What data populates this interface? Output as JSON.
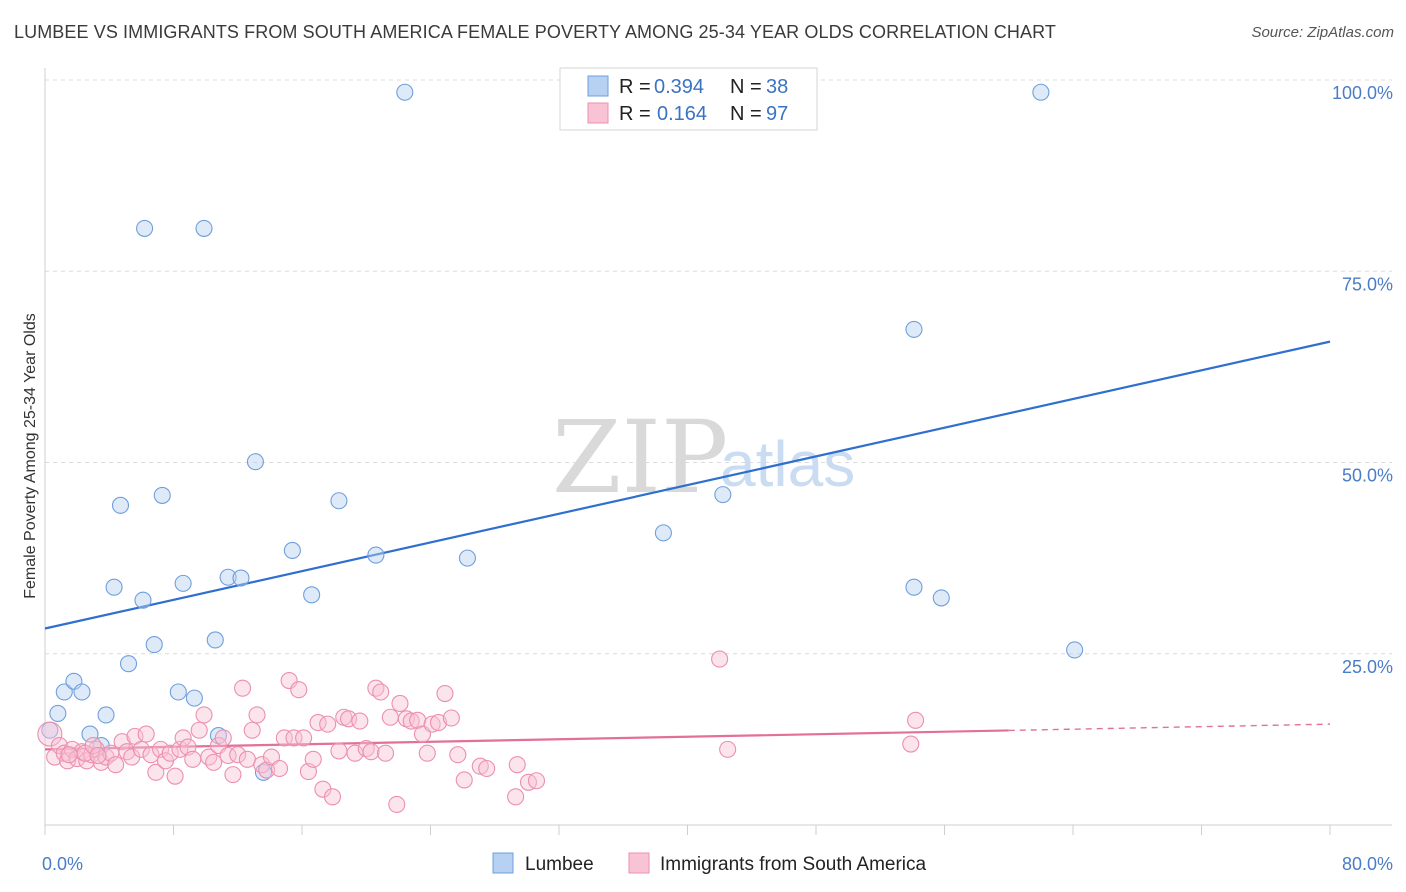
{
  "title": "LUMBEE VS IMMIGRANTS FROM SOUTH AMERICA FEMALE POVERTY AMONG 25-34 YEAR OLDS CORRELATION CHART",
  "source": "Source: ZipAtlas.com",
  "watermark": {
    "zip": "ZIP",
    "atlas": "atlas"
  },
  "legend": {
    "rows": [
      {
        "r_label": "R =",
        "r_value": "0.394",
        "n_label": "N =",
        "n_value": "38",
        "color": "#a9c8f0"
      },
      {
        "r_label": "R =",
        "r_value": "0.164",
        "n_label": "N =",
        "n_value": "97",
        "color": "#f6b8cc"
      }
    ]
  },
  "bottom_legend": [
    "Lumbee",
    "Immigrants from South America"
  ],
  "chart_data": {
    "type": "scatter",
    "title": "LUMBEE VS IMMIGRANTS FROM SOUTH AMERICA FEMALE POVERTY AMONG 25-34 YEAR OLDS CORRELATION CHART",
    "xlabel": "",
    "ylabel": "Female Poverty Among 25-34 Year Olds",
    "xlim": [
      0,
      80
    ],
    "ylim": [
      0,
      100
    ],
    "x_tick_labels": [
      "0.0%",
      "80.0%"
    ],
    "y_tick_labels": [
      "100.0%",
      "75.0%",
      "50.0%",
      "25.0%"
    ],
    "y_ticks": [
      100,
      75,
      50,
      25
    ],
    "grid": true,
    "legend_position": "top-center",
    "series": [
      {
        "name": "Lumbee",
        "color": "#6f9fdd",
        "fill": "#b7d1f2",
        "trend": {
          "x": [
            0,
            80
          ],
          "y": [
            28.3,
            65.8
          ],
          "color": "#2f6fcf",
          "dashed_from": null
        },
        "points": [
          [
            0.3,
            15
          ],
          [
            0.8,
            17.2
          ],
          [
            1.2,
            20
          ],
          [
            1.8,
            21.4
          ],
          [
            2.3,
            20
          ],
          [
            2.8,
            14.5
          ],
          [
            3.5,
            13
          ],
          [
            3.8,
            17
          ],
          [
            4.3,
            33.7
          ],
          [
            4.7,
            44.4
          ],
          [
            5.2,
            23.7
          ],
          [
            6.1,
            32
          ],
          [
            6.2,
            80.6
          ],
          [
            6.8,
            26.2
          ],
          [
            7.3,
            45.7
          ],
          [
            8.3,
            20
          ],
          [
            8.6,
            34.2
          ],
          [
            9.3,
            19.2
          ],
          [
            9.9,
            80.6
          ],
          [
            10.6,
            26.8
          ],
          [
            10.8,
            14.3
          ],
          [
            11.4,
            35
          ],
          [
            12.2,
            34.9
          ],
          [
            13.1,
            50.1
          ],
          [
            13.6,
            9.5
          ],
          [
            15.4,
            38.5
          ],
          [
            16.6,
            32.7
          ],
          [
            18.3,
            45
          ],
          [
            20.6,
            37.9
          ],
          [
            22.4,
            98.4
          ],
          [
            26.3,
            37.5
          ],
          [
            38.5,
            40.8
          ],
          [
            42.2,
            45.8
          ],
          [
            54.1,
            67.4
          ],
          [
            54.1,
            33.7
          ],
          [
            55.8,
            32.3
          ],
          [
            62,
            98.4
          ],
          [
            64.1,
            25.5
          ]
        ]
      },
      {
        "name": "Immigrants from South America",
        "color": "#ec8fae",
        "fill": "#f8c4d5",
        "trend": {
          "x": [
            0,
            80
          ],
          "y": [
            12.5,
            15.8
          ],
          "color": "#e2709a",
          "dashed_from": 60
        },
        "points": [
          [
            0.3,
            14.5
          ],
          [
            0.6,
            11.5
          ],
          [
            0.9,
            13
          ],
          [
            1.2,
            12
          ],
          [
            1.4,
            11
          ],
          [
            1.7,
            12.5
          ],
          [
            2,
            11.3
          ],
          [
            2.3,
            12.2
          ],
          [
            2.6,
            11
          ],
          [
            2.9,
            11.8
          ],
          [
            3.2,
            12.5
          ],
          [
            3.5,
            10.8
          ],
          [
            3.8,
            11.5
          ],
          [
            4.1,
            12
          ],
          [
            4.4,
            10.5
          ],
          [
            4.8,
            13.5
          ],
          [
            5.1,
            12.2
          ],
          [
            5.4,
            11.5
          ],
          [
            5.6,
            14.2
          ],
          [
            6,
            12.5
          ],
          [
            6.3,
            14.5
          ],
          [
            6.6,
            11.8
          ],
          [
            6.9,
            9.5
          ],
          [
            7.2,
            12.5
          ],
          [
            7.5,
            11
          ],
          [
            7.8,
            12
          ],
          [
            8.1,
            9
          ],
          [
            8.4,
            12.5
          ],
          [
            8.6,
            14
          ],
          [
            8.9,
            12.8
          ],
          [
            9.2,
            11.2
          ],
          [
            9.6,
            15
          ],
          [
            9.9,
            17
          ],
          [
            10.2,
            11.5
          ],
          [
            10.5,
            10.8
          ],
          [
            10.8,
            13
          ],
          [
            11.1,
            14
          ],
          [
            11.4,
            11.7
          ],
          [
            11.7,
            9.2
          ],
          [
            12,
            11.8
          ],
          [
            12.3,
            20.5
          ],
          [
            12.6,
            11.2
          ],
          [
            12.9,
            15
          ],
          [
            13.2,
            17
          ],
          [
            13.5,
            10.5
          ],
          [
            13.8,
            9.8
          ],
          [
            14.1,
            11.5
          ],
          [
            14.6,
            10
          ],
          [
            14.9,
            14
          ],
          [
            15.2,
            21.5
          ],
          [
            15.5,
            14
          ],
          [
            15.8,
            20.3
          ],
          [
            16.1,
            14
          ],
          [
            16.4,
            9.6
          ],
          [
            16.7,
            11.2
          ],
          [
            17,
            16
          ],
          [
            17.3,
            7.3
          ],
          [
            17.6,
            15.8
          ],
          [
            17.9,
            6.3
          ],
          [
            18.3,
            12.3
          ],
          [
            18.6,
            16.7
          ],
          [
            18.9,
            16.5
          ],
          [
            19.3,
            12
          ],
          [
            19.6,
            16.2
          ],
          [
            20,
            12.6
          ],
          [
            20.3,
            12.2
          ],
          [
            20.6,
            20.5
          ],
          [
            20.9,
            20
          ],
          [
            21.2,
            12
          ],
          [
            21.5,
            16.7
          ],
          [
            21.9,
            5.3
          ],
          [
            22.1,
            18.5
          ],
          [
            22.5,
            16.5
          ],
          [
            22.8,
            16.2
          ],
          [
            23.2,
            16.3
          ],
          [
            23.5,
            14.5
          ],
          [
            23.8,
            12
          ],
          [
            24.1,
            15.8
          ],
          [
            24.5,
            16
          ],
          [
            24.9,
            19.8
          ],
          [
            25.3,
            16.6
          ],
          [
            25.7,
            11.8
          ],
          [
            26.1,
            8.5
          ],
          [
            27.1,
            10.3
          ],
          [
            27.5,
            10
          ],
          [
            29.3,
            6.3
          ],
          [
            29.4,
            10.5
          ],
          [
            30.1,
            8.2
          ],
          [
            30.6,
            8.4
          ],
          [
            42,
            24.3
          ],
          [
            42.5,
            12.5
          ],
          [
            53.9,
            13.2
          ],
          [
            54.2,
            16.3
          ],
          [
            2.5,
            12
          ],
          [
            3,
            13
          ],
          [
            3.3,
            11.7
          ],
          [
            1.5,
            11.8
          ]
        ]
      }
    ]
  }
}
